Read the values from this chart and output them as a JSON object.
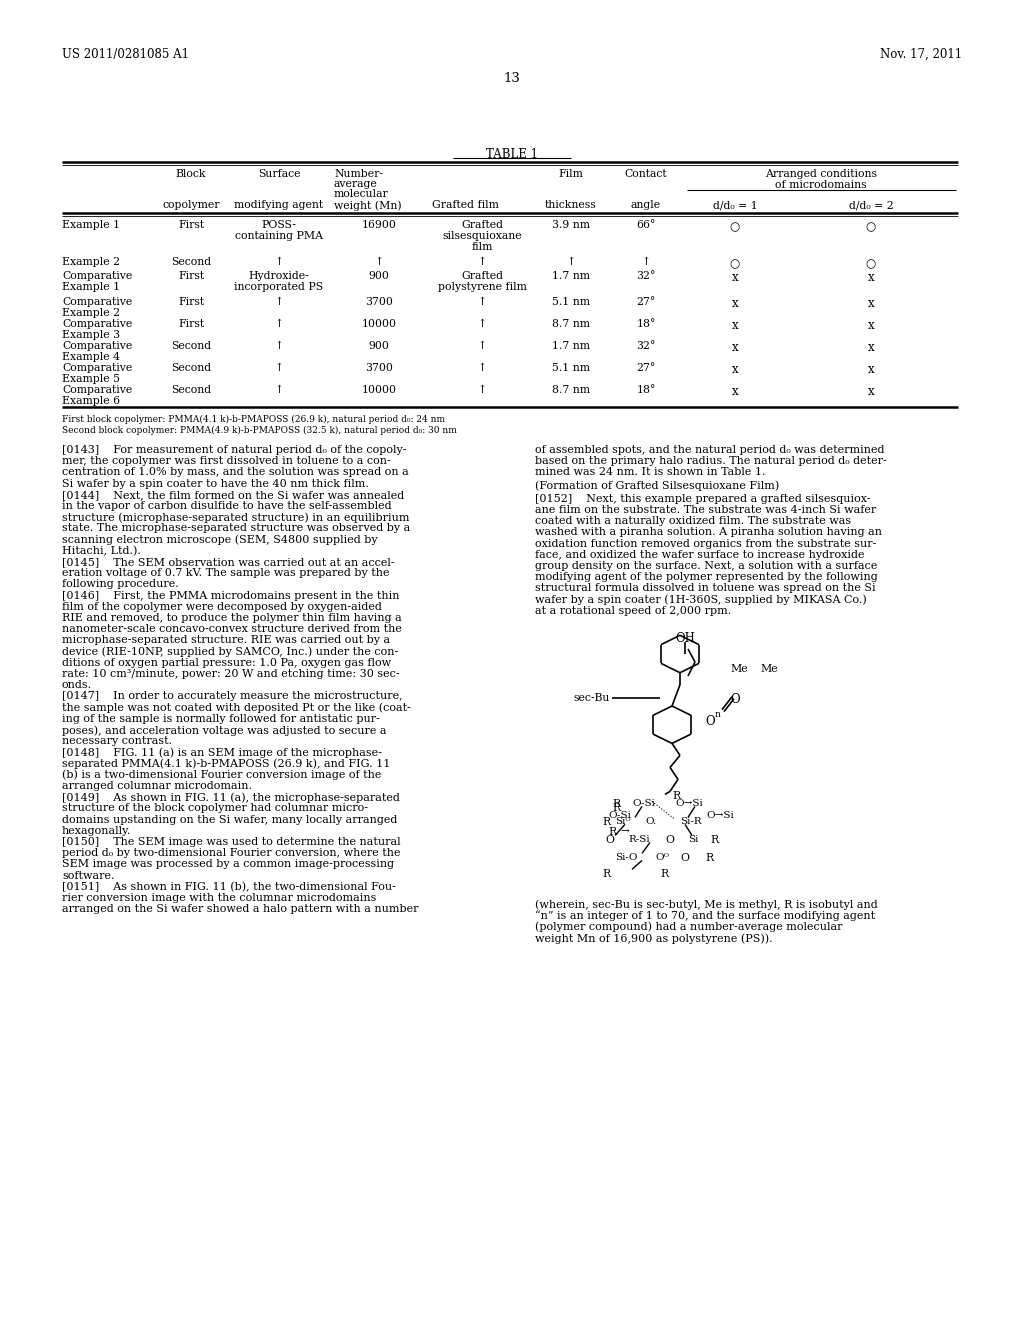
{
  "patent_number": "US 2011/0281085 A1",
  "date": "Nov. 17, 2011",
  "page_number": "13",
  "table_title": "TABLE 1",
  "background_color": "#ffffff",
  "footnote1": "First block copolymer: PMMA(4.1 k)-b-PMAPOSS (26.9 k), natural period d₀: 24 nm",
  "footnote2": "Second block copolymer: PMMA(4.9 k)-b-PMAPOSS (32.5 k), natural period d₀: 30 nm",
  "left_text": "[0143]    For measurement of natural period d₀ of the copoly-\nmer, the copolymer was first dissolved in toluene to a con-\ncentration of 1.0% by mass, and the solution was spread on a\nSi wafer by a spin coater to have the 40 nm thick film.\n[0144]    Next, the film formed on the Si wafer was annealed\nin the vapor of carbon disulfide to have the self-assembled\nstructure (microphase-separated structure) in an equilibrium\nstate. The microphase-separated structure was observed by a\nscanning electron microscope (SEM, S4800 supplied by\nHitachi, Ltd.).\n[0145]    The SEM observation was carried out at an accel-\neration voltage of 0.7 kV. The sample was prepared by the\nfollowing procedure.\n[0146]    First, the PMMA microdomains present in the thin\nfilm of the copolymer were decomposed by oxygen-aided\nRIE and removed, to produce the polymer thin film having a\nnanometer-scale concavo-convex structure derived from the\nmicrophase-separated structure. RIE was carried out by a\ndevice (RIE-10NP, supplied by SAMCO, Inc.) under the con-\nditions of oxygen partial pressure: 1.0 Pa, oxygen gas flow\nrate: 10 cm³/minute, power: 20 W and etching time: 30 sec-\nonds.\n[0147]    In order to accurately measure the microstructure,\nthe sample was not coated with deposited Pt or the like (coat-\ning of the sample is normally followed for antistatic pur-\nposes), and acceleration voltage was adjusted to secure a\nnecessary contrast.\n[0148]    FIG. 11 (a) is an SEM image of the microphase-\nseparated PMMA(4.1 k)-b-PMAPOSS (26.9 k), and FIG. 11\n(b) is a two-dimensional Fourier conversion image of the\narranged columnar microdomain.\n[0149]    As shown in FIG. 11 (a), the microphase-separated\nstructure of the block copolymer had columnar micro-\ndomains upstanding on the Si wafer, many locally arranged\nhexagonally.\n[0150]    The SEM image was used to determine the natural\nperiod d₀ by two-dimensional Fourier conversion, where the\nSEM image was processed by a common image-processing\nsoftware.\n[0151]    As shown in FIG. 11 (b), the two-dimensional Fou-\nrier conversion image with the columnar microdomains\narranged on the Si wafer showed a halo pattern with a number",
  "right_text_1": "of assembled spots, and the natural period d₀ was determined\nbased on the primary halo radius. The natural period d₀ deter-\nmined was 24 nm. It is shown in Table 1.",
  "right_text_section": "(Formation of Grafted Silsesquioxane Film)",
  "right_text_2": "[0152]    Next, this example prepared a grafted silsesquiox-\nane film on the substrate. The substrate was 4-inch Si wafer\ncoated with a naturally oxidized film. The substrate was\nwashed with a piranha solution. A piranha solution having an\noxidation function removed organics from the substrate sur-\nface, and oxidized the wafer surface to increase hydroxide\ngroup density on the surface. Next, a solution with a surface\nmodifying agent of the polymer represented by the following\nstructural formula dissolved in toluene was spread on the Si\nwafer by a spin coater (1H-360S, supplied by MIKASA Co.)\nat a rotational speed of 2,000 rpm.",
  "caption": "(wherein, sec-Bu is sec-butyl, Me is methyl, R is isobutyl and\n“n” is an integer of 1 to 70, and the surface modifying agent\n(polymer compound) had a number-average molecular\nweight Mn of 16,900 as polystyrene (PS))."
}
